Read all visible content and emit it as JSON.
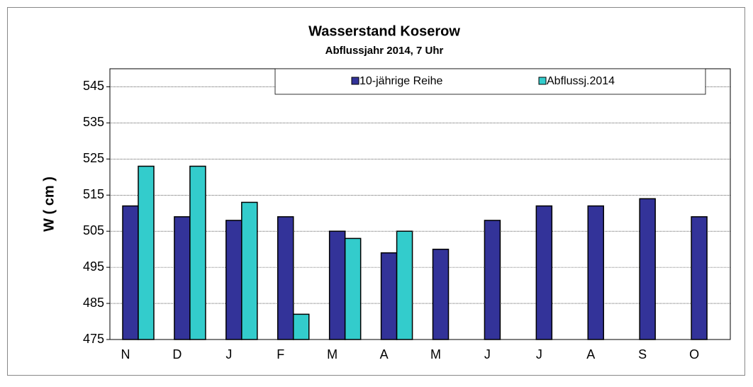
{
  "chart_data": {
    "type": "bar",
    "title": "Wasserstand Koserow",
    "subtitle": "Abflussjahr 2014, 7 Uhr",
    "y_label": "W ( cm )",
    "categories": [
      "N",
      "D",
      "J",
      "F",
      "M",
      "A",
      "M",
      "J",
      "J",
      "A",
      "S",
      "O"
    ],
    "series": [
      {
        "name": "10-jährige Reihe",
        "color": "#333399",
        "values": [
          512,
          509,
          508,
          509,
          505,
          499,
          500,
          508,
          512,
          512,
          514,
          509
        ]
      },
      {
        "name": "Abflussj.2014",
        "color": "#33cccc",
        "values": [
          523,
          523,
          513,
          482,
          503,
          505,
          null,
          null,
          null,
          null,
          null,
          null
        ]
      }
    ],
    "ylim": [
      475,
      550
    ],
    "yticks": [
      475,
      485,
      495,
      505,
      515,
      525,
      535,
      545
    ],
    "grid": true,
    "legend": "top"
  }
}
